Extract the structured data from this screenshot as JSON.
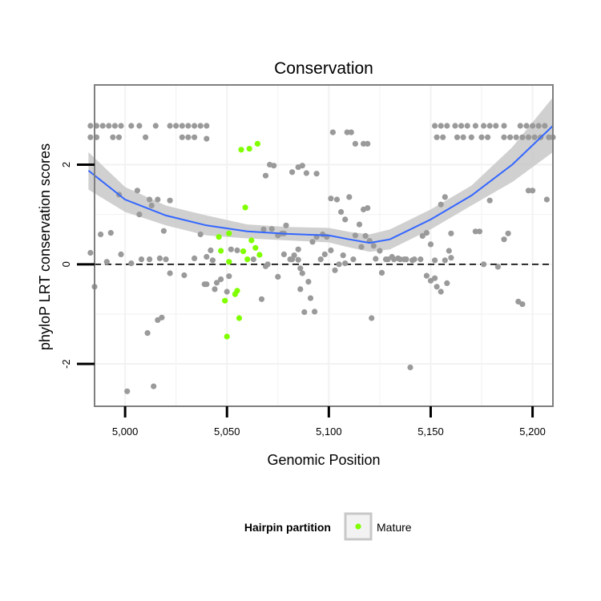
{
  "chart_data": {
    "type": "scatter",
    "title": "Conservation",
    "xlabel": "Genomic Position",
    "ylabel": "phyloP LRT conservation scores",
    "xlim": [
      4985,
      5210
    ],
    "ylim": [
      -2.85,
      3.6
    ],
    "x_ticks": [
      5000,
      5050,
      5100,
      5150,
      5200
    ],
    "x_tick_labels": [
      "5,000",
      "5,050",
      "5,100",
      "5,150",
      "5,200"
    ],
    "y_ticks": [
      -2,
      0,
      2
    ],
    "y_tick_labels": [
      "-2",
      "0",
      "2"
    ],
    "grid": true,
    "reference_line": {
      "y": 0,
      "style": "dashed"
    },
    "legend": {
      "title": "Hairpin partition",
      "position": "bottom",
      "entries": [
        "Mature"
      ]
    },
    "colors": {
      "other": "#9a9a9a",
      "mature": "#7fff00",
      "smooth": "#3366ff",
      "ribbon": "#c8c8c8",
      "panel_border": "#7f7f7f",
      "grid": "#f2f2f2"
    },
    "series": [
      {
        "name": "Mature",
        "points": [
          [
            5057,
            2.3
          ],
          [
            5061,
            2.32
          ],
          [
            5065,
            2.42
          ],
          [
            5059,
            1.14
          ],
          [
            5051,
            0.62
          ],
          [
            5046,
            0.55
          ],
          [
            5047,
            0.27
          ],
          [
            5058,
            0.26
          ],
          [
            5062,
            0.48
          ],
          [
            5064,
            0.33
          ],
          [
            5066,
            0.19
          ],
          [
            5060,
            0.1
          ],
          [
            5051,
            0.05
          ],
          [
            5055,
            -0.53
          ],
          [
            5054,
            -0.6
          ],
          [
            5049,
            -0.73
          ],
          [
            5056,
            -1.08
          ],
          [
            5050,
            -1.45
          ]
        ]
      },
      {
        "points": [
          [
            4983,
            2.78
          ],
          [
            4986,
            2.78
          ],
          [
            4989,
            2.78
          ],
          [
            4992,
            2.78
          ],
          [
            4995,
            2.78
          ],
          [
            4998,
            2.78
          ],
          [
            5003,
            2.78
          ],
          [
            5007,
            2.78
          ],
          [
            5015,
            2.78
          ],
          [
            5022,
            2.78
          ],
          [
            5025,
            2.78
          ],
          [
            5028,
            2.78
          ],
          [
            5031,
            2.78
          ],
          [
            5034,
            2.78
          ],
          [
            5037,
            2.78
          ],
          [
            5040,
            2.78
          ],
          [
            4983,
            2.55
          ],
          [
            4986,
            2.55
          ],
          [
            4994,
            2.55
          ],
          [
            4997,
            2.55
          ],
          [
            5010,
            2.55
          ],
          [
            5028,
            2.55
          ],
          [
            5031,
            2.55
          ],
          [
            5034,
            2.55
          ],
          [
            5040,
            2.52
          ],
          [
            5109,
            2.65
          ],
          [
            5111,
            2.65
          ],
          [
            5113,
            2.42
          ],
          [
            5117,
            2.42
          ],
          [
            5119,
            2.42
          ],
          [
            5102,
            2.65
          ],
          [
            5087,
            1.98
          ],
          [
            5085,
            1.95
          ],
          [
            5082,
            1.85
          ],
          [
            5089,
            1.83
          ],
          [
            5094,
            1.82
          ],
          [
            4997,
            1.4
          ],
          [
            5006,
            1.48
          ],
          [
            5012,
            1.3
          ],
          [
            5016,
            1.3
          ],
          [
            5022,
            1.28
          ],
          [
            5007,
            1.0
          ],
          [
            5019,
            0.67
          ],
          [
            5013,
            1.18
          ],
          [
            5037,
            0.6
          ],
          [
            4988,
            0.6
          ],
          [
            4993,
            0.63
          ],
          [
            4983,
            0.23
          ],
          [
            4985,
            -0.45
          ],
          [
            4991,
            0.05
          ],
          [
            4998,
            0.2
          ],
          [
            5003,
            0.02
          ],
          [
            5008,
            0.1
          ],
          [
            5012,
            0.1
          ],
          [
            5017,
            0.12
          ],
          [
            5020,
            0.1
          ],
          [
            5022,
            -0.18
          ],
          [
            5029,
            -0.22
          ],
          [
            5034,
            0.12
          ],
          [
            5040,
            0.15
          ],
          [
            5040,
            -0.4
          ],
          [
            5043,
            0.08
          ],
          [
            5045,
            -0.37
          ],
          [
            5047,
            -0.3
          ],
          [
            5051,
            -0.24
          ],
          [
            5044,
            -0.5
          ],
          [
            5050,
            -0.55
          ],
          [
            5055,
            0.28
          ],
          [
            5068,
            0.7
          ],
          [
            5072,
            0.71
          ],
          [
            5075,
            0.58
          ],
          [
            5078,
            0.62
          ],
          [
            5081,
            0.1
          ],
          [
            5085,
            0.09
          ],
          [
            5086,
            -0.08
          ],
          [
            5087,
            -0.18
          ],
          [
            5090,
            -0.35
          ],
          [
            5092,
            0.45
          ],
          [
            5094,
            0.55
          ],
          [
            5097,
            0.6
          ],
          [
            5099,
            0.55
          ],
          [
            5101,
            1.32
          ],
          [
            5104,
            1.3
          ],
          [
            5106,
            1.05
          ],
          [
            5108,
            0.9
          ],
          [
            5110,
            1.35
          ],
          [
            5113,
            0.58
          ],
          [
            5115,
            0.8
          ],
          [
            5118,
            0.57
          ],
          [
            5120,
            0.47
          ],
          [
            5122,
            0.37
          ],
          [
            5125,
            0.27
          ],
          [
            5123,
            0.11
          ],
          [
            5126,
            -0.17
          ],
          [
            5128,
            0.1
          ],
          [
            5131,
            0.15
          ],
          [
            5134,
            0.12
          ],
          [
            5137,
            0.1
          ],
          [
            5141,
            0.08
          ],
          [
            5145,
            0.1
          ],
          [
            5148,
            -0.23
          ],
          [
            5150,
            -0.33
          ],
          [
            5152,
            -0.28
          ],
          [
            5153,
            -0.45
          ],
          [
            5150,
            0.4
          ],
          [
            5152,
            0.08
          ],
          [
            5155,
            -0.55
          ],
          [
            5157,
            0.08
          ],
          [
            5158,
            -0.38
          ],
          [
            5159,
            0.27
          ],
          [
            5160,
            0.13
          ],
          [
            5157,
            1.35
          ],
          [
            5155,
            1.2
          ],
          [
            5160,
            0.62
          ],
          [
            5172,
            0.66
          ],
          [
            5174,
            0.66
          ],
          [
            5176,
            0.0
          ],
          [
            5179,
            1.28
          ],
          [
            5183,
            -0.05
          ],
          [
            5186,
            0.5
          ],
          [
            5188,
            0.62
          ],
          [
            5193,
            -0.75
          ],
          [
            5195,
            -0.8
          ],
          [
            5198,
            1.48
          ],
          [
            5200,
            1.48
          ],
          [
            5207,
            1.3
          ],
          [
            5088,
            -0.96
          ],
          [
            5086,
            -0.5
          ],
          [
            5093,
            -0.95
          ],
          [
            5091,
            -0.68
          ],
          [
            5098,
            0.2
          ],
          [
            5101,
            0.28
          ],
          [
            5103,
            -0.12
          ],
          [
            5105,
            0.0
          ],
          [
            5107,
            0.18
          ],
          [
            5067,
            -0.7
          ],
          [
            5077,
            0.62
          ],
          [
            5078,
            0.2
          ],
          [
            5082,
            0.1
          ],
          [
            5075,
            -0.25
          ],
          [
            5070,
            0.0
          ],
          [
            5063,
            0.1
          ],
          [
            5069,
            -0.04
          ],
          [
            5140,
            -2.07
          ],
          [
            5121,
            -1.08
          ],
          [
            5069,
            1.78
          ],
          [
            5071,
            2.0
          ],
          [
            5073,
            1.98
          ],
          [
            5079,
            0.78
          ],
          [
            5083,
            0.18
          ],
          [
            5085,
            0.3
          ],
          [
            5052,
            0.3
          ],
          [
            5039,
            -0.4
          ],
          [
            5042,
            0.28
          ],
          [
            5018,
            -1.07
          ],
          [
            5016,
            -1.12
          ],
          [
            5011,
            -1.38
          ],
          [
            5014,
            -2.45
          ],
          [
            5001,
            -2.55
          ],
          [
            5108,
            0.02
          ],
          [
            5096,
            0.1
          ],
          [
            5112,
            0.1
          ],
          [
            5117,
            1.1
          ],
          [
            5119,
            1.13
          ],
          [
            5116,
            0.35
          ],
          [
            5129,
            0.1
          ],
          [
            5132,
            0.1
          ],
          [
            5135,
            0.1
          ],
          [
            5138,
            0.1
          ],
          [
            5142,
            0.1
          ],
          [
            5146,
            0.57
          ],
          [
            5148,
            0.63
          ],
          [
            5152,
            2.78
          ],
          [
            5155,
            2.78
          ],
          [
            5158,
            2.78
          ],
          [
            5162,
            2.78
          ],
          [
            5165,
            2.78
          ],
          [
            5168,
            2.78
          ],
          [
            5172,
            2.78
          ],
          [
            5176,
            2.78
          ],
          [
            5179,
            2.78
          ],
          [
            5182,
            2.78
          ],
          [
            5186,
            2.78
          ],
          [
            5194,
            2.78
          ],
          [
            5197,
            2.78
          ],
          [
            5200,
            2.78
          ],
          [
            5203,
            2.78
          ],
          [
            5206,
            2.78
          ],
          [
            5153,
            2.55
          ],
          [
            5156,
            2.55
          ],
          [
            5163,
            2.55
          ],
          [
            5166,
            2.55
          ],
          [
            5170,
            2.55
          ],
          [
            5175,
            2.55
          ],
          [
            5178,
            2.55
          ],
          [
            5186,
            2.55
          ],
          [
            5189,
            2.55
          ],
          [
            5192,
            2.55
          ],
          [
            5195,
            2.55
          ],
          [
            5198,
            2.55
          ],
          [
            5201,
            2.55
          ],
          [
            5204,
            2.55
          ],
          [
            5208,
            2.55
          ],
          [
            5210,
            2.55
          ]
        ]
      }
    ],
    "smooth": {
      "x": [
        4982,
        5000,
        5020,
        5040,
        5060,
        5080,
        5100,
        5110,
        5120,
        5130,
        5150,
        5170,
        5190,
        5210
      ],
      "y": [
        1.88,
        1.3,
        0.98,
        0.78,
        0.66,
        0.61,
        0.58,
        0.5,
        0.43,
        0.5,
        0.9,
        1.38,
        2.0,
        2.78
      ],
      "lower": [
        1.5,
        1.05,
        0.78,
        0.58,
        0.52,
        0.48,
        0.44,
        0.34,
        0.25,
        0.3,
        0.7,
        1.18,
        1.65,
        2.25
      ],
      "upper": [
        2.25,
        1.55,
        1.18,
        0.98,
        0.8,
        0.75,
        0.73,
        0.65,
        0.6,
        0.7,
        1.1,
        1.58,
        2.35,
        3.35
      ]
    }
  }
}
